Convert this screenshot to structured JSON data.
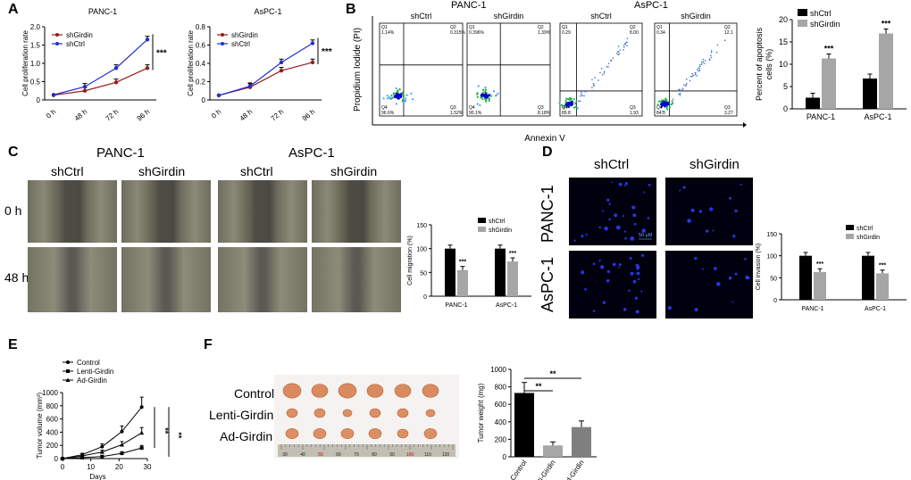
{
  "panels": {
    "A": {
      "letter": "A",
      "charts": [
        {
          "type": "line",
          "title": "PANC-1",
          "ylabel": "Cell proliferation rate",
          "categories": [
            "0 h",
            "48 h",
            "72 h",
            "96 h"
          ],
          "ylim": [
            0,
            2.0
          ],
          "yticks": [
            "0",
            "0.5",
            "1.0",
            "1.5",
            "2.0"
          ],
          "series": [
            {
              "name": "shGirdin",
              "color": "#9b1b1b",
              "values": [
                0.13,
                0.25,
                0.48,
                0.87
              ]
            },
            {
              "name": "shCtrl",
              "color": "#1f2fd6",
              "values": [
                0.14,
                0.36,
                0.87,
                1.65
              ]
            }
          ],
          "significance": "***"
        },
        {
          "type": "line",
          "title": "AsPC-1",
          "ylabel": "Cell proliferation rate",
          "categories": [
            "0 h",
            "48 h",
            "72 h",
            "96 h"
          ],
          "ylim": [
            0,
            0.8
          ],
          "yticks": [
            "0",
            "0.2",
            "0.4",
            "0.6",
            "0.8"
          ],
          "series": [
            {
              "name": "shGirdin",
              "color": "#9b1b1b",
              "values": [
                0.05,
                0.14,
                0.32,
                0.41
              ]
            },
            {
              "name": "shCtrl",
              "color": "#1f2fd6",
              "values": [
                0.05,
                0.15,
                0.41,
                0.62
              ]
            }
          ],
          "significance": "***"
        }
      ]
    },
    "B": {
      "letter": "B",
      "groups": [
        "PANC-1",
        "AsPC-1"
      ],
      "plot_labels": [
        "shCtrl",
        "shGirdin",
        "shCtrl",
        "shGirdin"
      ],
      "ylabel": "Propidium Iodide (PI)",
      "xlabel": "Annexin V",
      "quadrants": [
        {
          "q1": "Q1",
          "q1v": "1.14%",
          "q2": "Q2",
          "q2v": "0.315%",
          "q3": "Q3",
          "q3v": "1.52%",
          "q4": "Q4",
          "q4v": "96.6%"
        },
        {
          "q1": "Q1",
          "q1v": "0.396%",
          "q2": "Q2",
          "q2v": "1.39%",
          "q3": "Q3",
          "q3v": "8.18%",
          "q4": "Q4",
          "q4v": "90.1%"
        },
        {
          "q1": "Q1",
          "q1v": "0.29",
          "q2": "Q2",
          "q2v": "8.00",
          "q3": "Q3",
          "q3v": "1.93",
          "q4": "Q4",
          "q4v": "89.8"
        },
        {
          "q1": "Q1",
          "q1v": "0.34",
          "q2": "Q2",
          "q2v": "12.1",
          "q3": "Q3",
          "q3v": "3.27",
          "q4": "Q4",
          "q4v": "84.3"
        }
      ],
      "chart": {
        "type": "bar",
        "ylabel": "Percent of apoptosis cells (%)",
        "categories": [
          "PANC-1",
          "AsPC-1"
        ],
        "ylim": [
          0,
          20
        ],
        "yticks": [
          "0",
          "5",
          "10",
          "15",
          "20"
        ],
        "series": [
          {
            "name": "shCtrl",
            "color": "#000000",
            "values": [
              2.5,
              6.8
            ]
          },
          {
            "name": "shGirdin",
            "color": "#a6a6a6",
            "values": [
              11.3,
              16.9
            ]
          }
        ],
        "significance": [
          "***",
          "***"
        ]
      }
    },
    "C": {
      "letter": "C",
      "groups": [
        "PANC-1",
        "AsPC-1"
      ],
      "columns": [
        "shCtrl",
        "shGirdin",
        "shCtrl",
        "shGirdin"
      ],
      "rows": [
        "0 h",
        "48 h"
      ],
      "chart": {
        "type": "bar",
        "ylabel": "Cell migration (%)",
        "categories": [
          "PANC-1",
          "AsPC-1"
        ],
        "ylim": [
          0,
          150
        ],
        "yticks": [
          "0",
          "50",
          "100",
          "150"
        ],
        "series": [
          {
            "name": "shCtrl",
            "color": "#000000",
            "values": [
              100,
              100
            ]
          },
          {
            "name": "shGirdin",
            "color": "#a6a6a6",
            "values": [
              55,
              73
            ]
          }
        ],
        "significance": [
          "***",
          "***"
        ]
      }
    },
    "D": {
      "letter": "D",
      "columns": [
        "shCtrl",
        "shGirdin"
      ],
      "rows": [
        "PANC-1",
        "AsPC-1"
      ],
      "scalebar": "50 μM",
      "chart": {
        "type": "bar",
        "ylabel": "Cell invasion (%)",
        "categories": [
          "PANC-1",
          "AsPC-1"
        ],
        "ylim": [
          0,
          150
        ],
        "yticks": [
          "0",
          "50",
          "100",
          "150"
        ],
        "series": [
          {
            "name": "shCtrl",
            "color": "#000000",
            "values": [
              100,
              100
            ]
          },
          {
            "name": "shGirdin",
            "color": "#a6a6a6",
            "values": [
              63,
              60
            ]
          }
        ],
        "significance": [
          "***",
          "***"
        ]
      }
    },
    "E": {
      "letter": "E",
      "chart": {
        "type": "line",
        "ylabel": "Tumor volume (mm³)",
        "xlabel": "Days",
        "x": [
          0,
          7,
          14,
          21,
          28
        ],
        "xticks": [
          "0",
          "10",
          "20",
          "30"
        ],
        "ylim": [
          0,
          1000
        ],
        "yticks": [
          "0",
          "200",
          "400",
          "600",
          "800",
          "1000"
        ],
        "series": [
          {
            "name": "Control",
            "marker": "circle",
            "values": [
              0,
              60,
              180,
              410,
              780
            ]
          },
          {
            "name": "Lenti-Girdin",
            "marker": "square",
            "values": [
              0,
              15,
              30,
              80,
              160
            ]
          },
          {
            "name": "Ad-Girdin",
            "marker": "triangle",
            "values": [
              0,
              40,
              100,
              210,
              390
            ]
          }
        ],
        "significance": [
          "**",
          "**"
        ]
      }
    },
    "F": {
      "letter": "F",
      "rows": [
        "Control",
        "Lenti-Girdin",
        "Ad-Girdin"
      ],
      "ruler": [
        "30",
        "40",
        "50",
        "60",
        "70",
        "80",
        "90",
        "100",
        "110",
        "120"
      ],
      "chart": {
        "type": "bar",
        "ylabel": "Tumor weight (mg)",
        "categories": [
          "Control",
          "Lenti-Girdin",
          "Ad-Girdin"
        ],
        "ylim": [
          0,
          1000
        ],
        "yticks": [
          "0",
          "200",
          "400",
          "600",
          "800",
          "1000"
        ],
        "series": [
          {
            "name": "",
            "colors": [
              "#000000",
              "#a6a6a6",
              "#7f7f7f"
            ],
            "values": [
              730,
              130,
              340
            ]
          }
        ],
        "significance": [
          "**",
          "**"
        ]
      }
    }
  }
}
